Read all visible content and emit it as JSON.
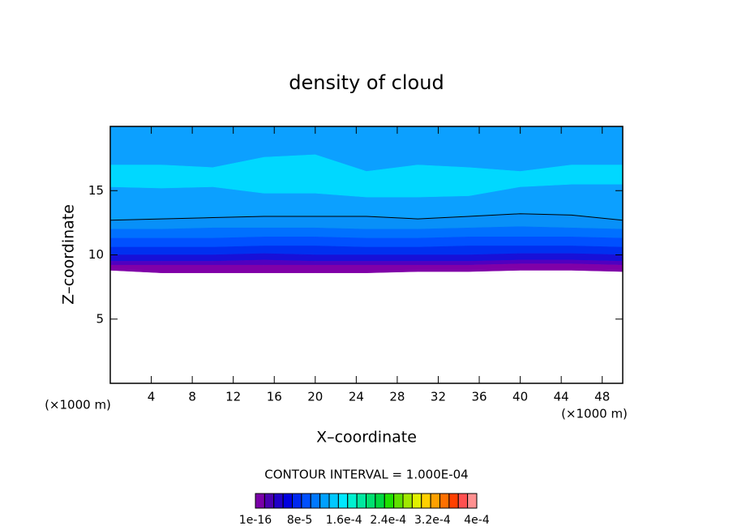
{
  "chart_data": {
    "type": "contour",
    "title": "density of cloud",
    "xlabel": "X–coordinate",
    "ylabel": "Z–coordinate",
    "xunit": "(×1000 m)",
    "yunit": "(×1000 m)",
    "note": "CONTOUR INTERVAL = 1.000E-04",
    "xlim": [
      0,
      50
    ],
    "ylim": [
      0,
      20
    ],
    "xticks": [
      4,
      8,
      12,
      16,
      20,
      24,
      28,
      32,
      36,
      40,
      44,
      48
    ],
    "yticks": [
      5,
      10,
      15
    ],
    "x": [
      0,
      5,
      10,
      15,
      20,
      25,
      30,
      35,
      40,
      45,
      50
    ],
    "bands": [
      {
        "color": "#0ca0ff",
        "top": [
          20,
          20,
          20,
          20,
          20,
          20,
          20,
          20,
          20,
          20,
          20
        ],
        "bottom": [
          12.7,
          12.8,
          12.9,
          13,
          13,
          13,
          12.8,
          13,
          13.2,
          13.1,
          12.7
        ]
      },
      {
        "color": "#00d8ff",
        "top": [
          17,
          17,
          16.8,
          17.6,
          17.8,
          16.5,
          17,
          16.8,
          16.5,
          17,
          17
        ],
        "bottom": [
          15.3,
          15.2,
          15.3,
          14.8,
          14.8,
          14.5,
          14.5,
          14.6,
          15.3,
          15.5,
          15.5
        ]
      },
      {
        "color": "#0890f8",
        "outline": true,
        "top": [
          12.7,
          12.8,
          12.9,
          13,
          13,
          13,
          12.8,
          13,
          13.2,
          13.1,
          12.7
        ],
        "bottom": [
          12,
          12,
          12.1,
          12.1,
          12.1,
          12,
          12,
          12.1,
          12.2,
          12.1,
          12
        ]
      },
      {
        "color": "#0070ff",
        "top": [
          12,
          12,
          12.1,
          12.1,
          12.1,
          12,
          12,
          12.1,
          12.2,
          12.1,
          12
        ],
        "bottom": [
          11.3,
          11.3,
          11.3,
          11.4,
          11.4,
          11.3,
          11.3,
          11.4,
          11.4,
          11.4,
          11.3
        ]
      },
      {
        "color": "#0050ff",
        "top": [
          11.3,
          11.3,
          11.3,
          11.4,
          11.4,
          11.3,
          11.3,
          11.4,
          11.4,
          11.4,
          11.3
        ],
        "bottom": [
          10.6,
          10.6,
          10.6,
          10.7,
          10.7,
          10.6,
          10.6,
          10.7,
          10.7,
          10.7,
          10.6
        ]
      },
      {
        "color": "#0030f0",
        "top": [
          10.6,
          10.6,
          10.6,
          10.7,
          10.7,
          10.6,
          10.6,
          10.7,
          10.7,
          10.7,
          10.6
        ],
        "bottom": [
          10,
          10,
          10,
          10.1,
          10,
          10,
          10,
          10,
          10.1,
          10.1,
          10
        ]
      },
      {
        "color": "#1810d8",
        "top": [
          10,
          10,
          10,
          10.1,
          10,
          10,
          10,
          10,
          10.1,
          10.1,
          10
        ],
        "bottom": [
          9.5,
          9.5,
          9.5,
          9.6,
          9.5,
          9.5,
          9.5,
          9.5,
          9.6,
          9.6,
          9.5
        ]
      },
      {
        "color": "#5000c0",
        "top": [
          9.5,
          9.5,
          9.5,
          9.6,
          9.5,
          9.5,
          9.5,
          9.5,
          9.6,
          9.6,
          9.5
        ],
        "bottom": [
          9.2,
          9.2,
          9.2,
          9.2,
          9.2,
          9.2,
          9.2,
          9.2,
          9.3,
          9.3,
          9.2
        ]
      },
      {
        "color": "#8000a8",
        "top": [
          9.2,
          9.2,
          9.2,
          9.2,
          9.2,
          9.2,
          9.2,
          9.2,
          9.3,
          9.3,
          9.2
        ],
        "bottom": [
          8.8,
          8.6,
          8.6,
          8.6,
          8.6,
          8.6,
          8.7,
          8.7,
          8.8,
          8.8,
          8.7
        ]
      }
    ],
    "colorbar": {
      "colors": [
        "#7a00a8",
        "#4a00b0",
        "#2000c8",
        "#0000e0",
        "#0028f0",
        "#0050ff",
        "#0078ff",
        "#00a0ff",
        "#00c8ff",
        "#00e8ff",
        "#00f0d0",
        "#00e8a0",
        "#00e070",
        "#00d840",
        "#20e000",
        "#60e000",
        "#a0e800",
        "#e0f000",
        "#ffd000",
        "#ffa000",
        "#ff7000",
        "#ff4000",
        "#ff5050",
        "#ff9090"
      ],
      "clim": [
        0,
        0.0004
      ],
      "ticks": [
        {
          "value": 1e-16,
          "label": "1e-16"
        },
        {
          "value": 8e-05,
          "label": "8e-5"
        },
        {
          "value": 0.00016,
          "label": "1.6e-4"
        },
        {
          "value": 0.00024,
          "label": "2.4e-4"
        },
        {
          "value": 0.00032,
          "label": "3.2e-4"
        },
        {
          "value": 0.0004,
          "label": "4e-4"
        }
      ]
    }
  }
}
